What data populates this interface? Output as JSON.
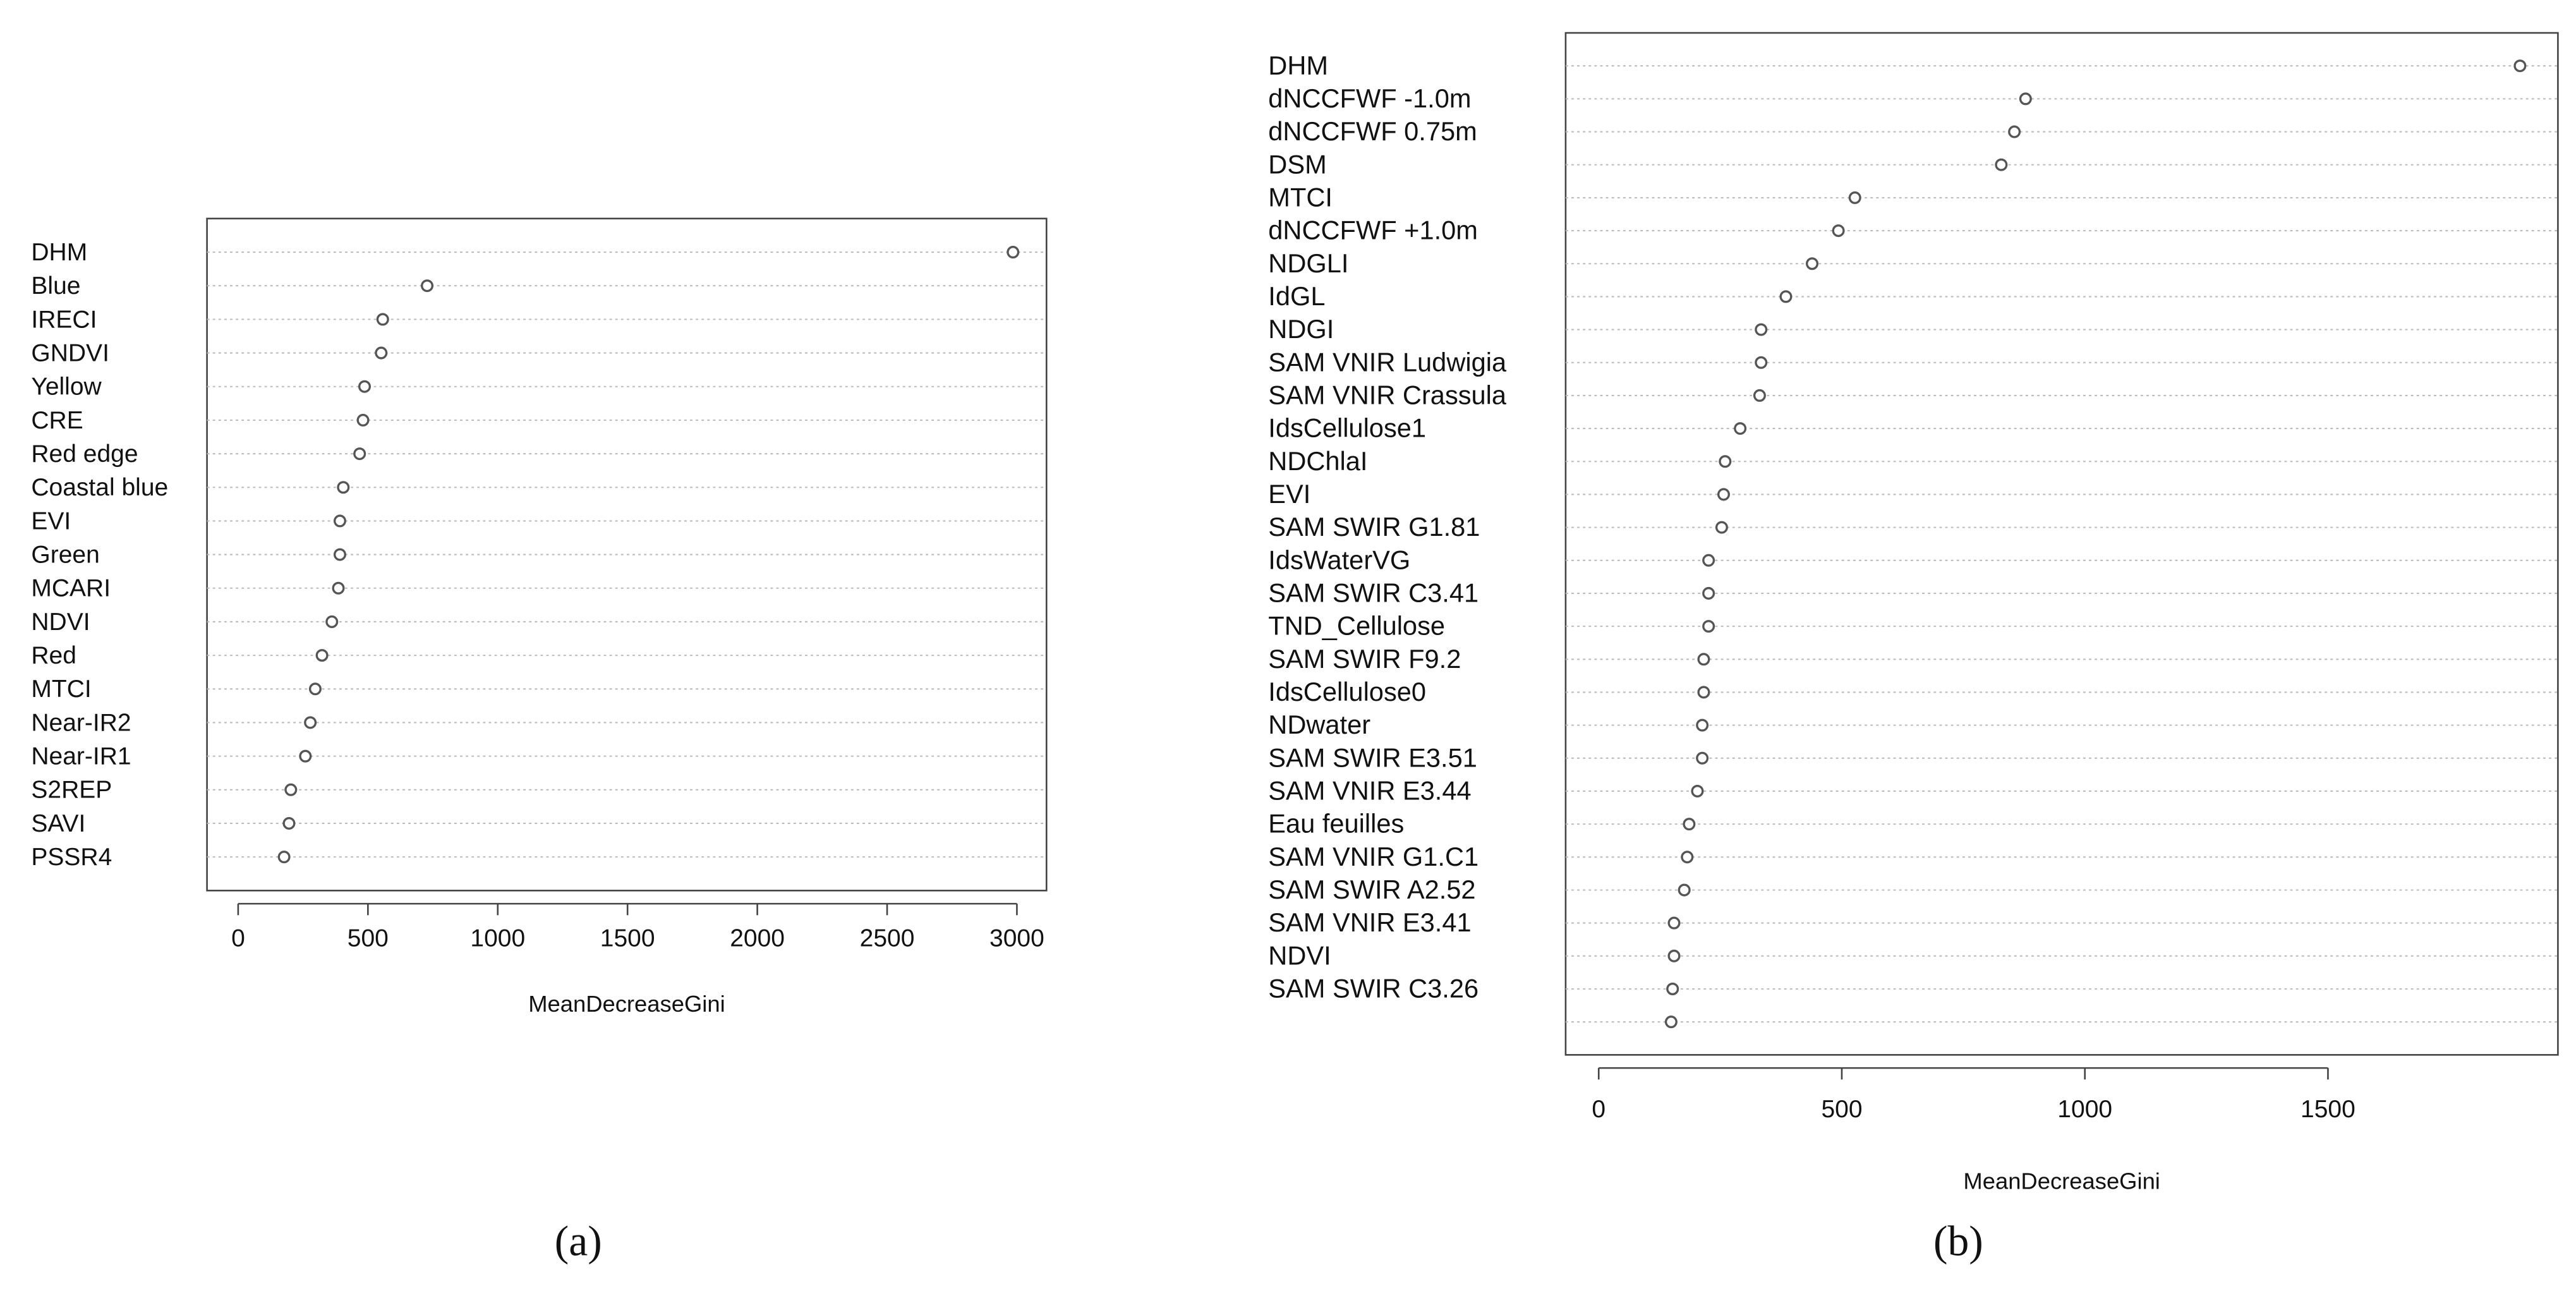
{
  "chart_data": [
    {
      "type": "dot",
      "caption": "(a)",
      "x_label": "MeanDecreaseGini",
      "categories": [
        "DHM",
        "Blue",
        "IRECI",
        "GNDVI",
        "Yellow",
        "CRE",
        "Red edge",
        "Coastal blue",
        "EVI",
        "Green",
        "MCARI",
        "NDVI",
        "Red",
        "MTCI",
        "Near-IR2",
        "Near-IR1",
        "S2REP",
        "SAVI",
        "PSSR4"
      ],
      "values": [
        2985,
        728,
        557,
        551,
        487,
        481,
        468,
        405,
        392,
        392,
        386,
        361,
        323,
        297,
        278,
        259,
        203,
        196,
        177
      ],
      "xlim": [
        -120,
        3114
      ],
      "xticks": [
        0,
        500,
        1000,
        1500,
        2000,
        2500,
        3000
      ],
      "color": "#555555"
    },
    {
      "type": "dot",
      "caption": "(b)",
      "x_label": "MeanDecreaseGini",
      "categories": [
        "DHM",
        "dNCCFWF -1.0m",
        "dNCCFWF 0.75m",
        "DSM",
        "MTCI",
        "dNCCFWF +1.0m",
        "NDGLI",
        "IdGL",
        "NDGI",
        "SAM VNIR Ludwigia",
        "SAM VNIR Crassula",
        "IdsCellulose1",
        "NDChlaI",
        "EVI",
        "SAM SWIR G1.81",
        "IdsWaterVG",
        "SAM SWIR C3.41",
        "TND_Cellulose",
        "SAM SWIR F9.2",
        "IdsCellulose0",
        "NDwater",
        "SAM SWIR E3.51",
        "SAM VNIR E3.44",
        "Eau feuilles",
        "SAM VNIR G1.C1",
        "SAM SWIR A2.52",
        "SAM VNIR E3.41",
        "NDVI",
        "SAM SWIR C3.26",
        null
      ],
      "values": [
        1895,
        878,
        855,
        828,
        527,
        493,
        439,
        385,
        334,
        334,
        331,
        291,
        260,
        257,
        253,
        226,
        226,
        226,
        216,
        216,
        213,
        213,
        203,
        186,
        182,
        176,
        155,
        155,
        152,
        149
      ],
      "xlim": [
        -68,
        1973
      ],
      "xticks": [
        0,
        500,
        1000,
        1500
      ],
      "color": "#555555"
    }
  ]
}
